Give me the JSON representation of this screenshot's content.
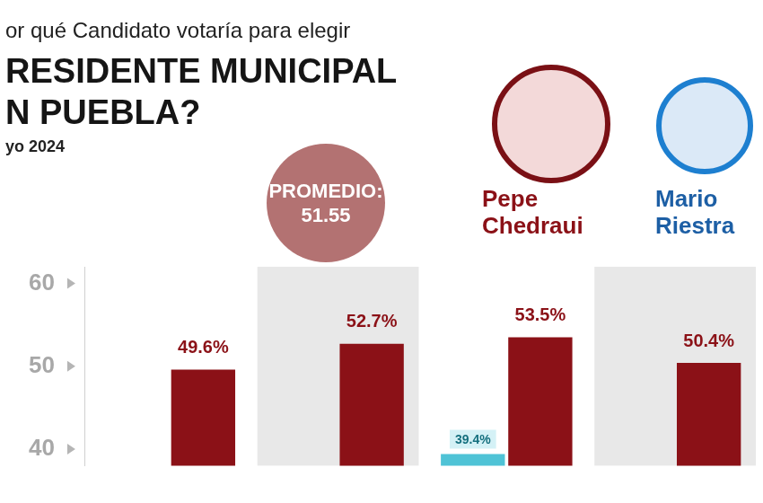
{
  "chart_data": {
    "type": "bar",
    "title": [
      "or qué Candidato votaría para elegir",
      "RESIDENTE MUNICIPAL",
      "N PUEBLA?"
    ],
    "subtitle": "yo 2024",
    "categories": [
      null,
      null,
      null,
      null
    ],
    "series": [
      {
        "name": "Pepe Chedraui",
        "color": "#8b1117",
        "values": [
          49.6,
          52.7,
          53.5,
          50.4
        ],
        "value_labels": [
          "49.6%",
          "52.7%",
          "53.5%",
          "50.4%"
        ]
      },
      {
        "name": "Mario Riestra",
        "color": "#4fc3d6",
        "values": [
          null,
          null,
          39.4,
          null
        ],
        "value_labels": [
          null,
          null,
          "39.4%",
          null
        ]
      }
    ],
    "ylim": [
      38,
      62
    ],
    "yticks": [
      40,
      50,
      60
    ],
    "grid": false,
    "data_labels": true,
    "tick_labels": "y",
    "legend": "top-right",
    "average": {
      "label": "PROMEDIO:",
      "value": 51.55
    }
  }
}
